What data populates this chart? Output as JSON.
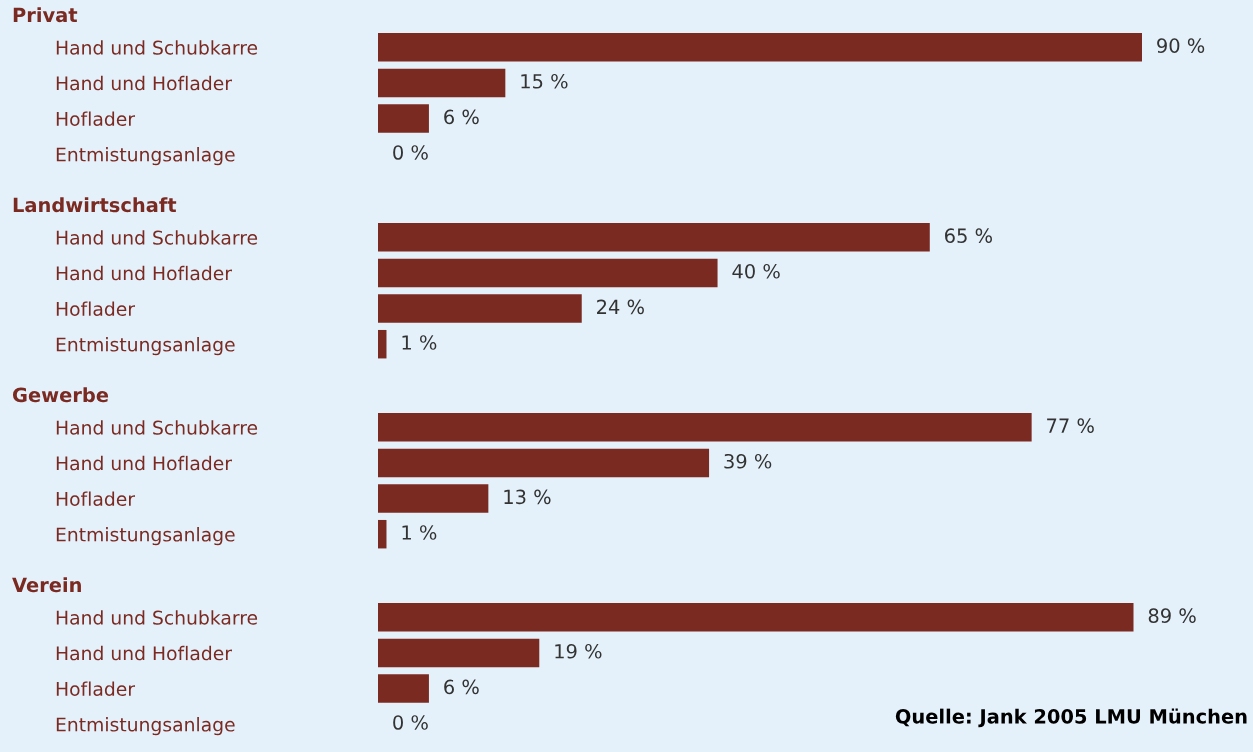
{
  "chart_data": [
    {
      "type": "bar",
      "orientation": "horizontal",
      "title": "Privat",
      "categories": [
        "Hand und Schubkarre",
        "Hand und Hoflader",
        "Hoflader",
        "Entmistungsanlage"
      ],
      "values": [
        90,
        15,
        6,
        0
      ],
      "value_labels": [
        "90 %",
        "15 %",
        "6 %",
        "0 %"
      ],
      "color": "#7b2a22"
    },
    {
      "type": "bar",
      "orientation": "horizontal",
      "title": "Landwirtschaft",
      "categories": [
        "Hand und Schubkarre",
        "Hand und Hoflader",
        "Hoflader",
        "Entmistungsanlage"
      ],
      "values": [
        65,
        40,
        24,
        1
      ],
      "value_labels": [
        "65 %",
        "40 %",
        "24 %",
        "1 %"
      ],
      "color": "#7b2a22"
    },
    {
      "type": "bar",
      "orientation": "horizontal",
      "title": "Gewerbe",
      "categories": [
        "Hand und Schubkarre",
        "Hand und Hoflader",
        "Hoflader",
        "Entmistungsanlage"
      ],
      "values": [
        77,
        39,
        13,
        1
      ],
      "value_labels": [
        "77 %",
        "39 %",
        "13 %",
        "1 %"
      ],
      "color": "#7b2a22"
    },
    {
      "type": "bar",
      "orientation": "horizontal",
      "title": "Verein",
      "categories": [
        "Hand und Schubkarre",
        "Hand und Hoflader",
        "Hoflader",
        "Entmistungsanlage"
      ],
      "values": [
        89,
        19,
        6,
        0
      ],
      "value_labels": [
        "89 %",
        "19 %",
        "6 %",
        "0 %"
      ],
      "color": "#7b2a22",
      "annotations": [
        "Quelle: Jank 2005 LMU München"
      ]
    }
  ]
}
